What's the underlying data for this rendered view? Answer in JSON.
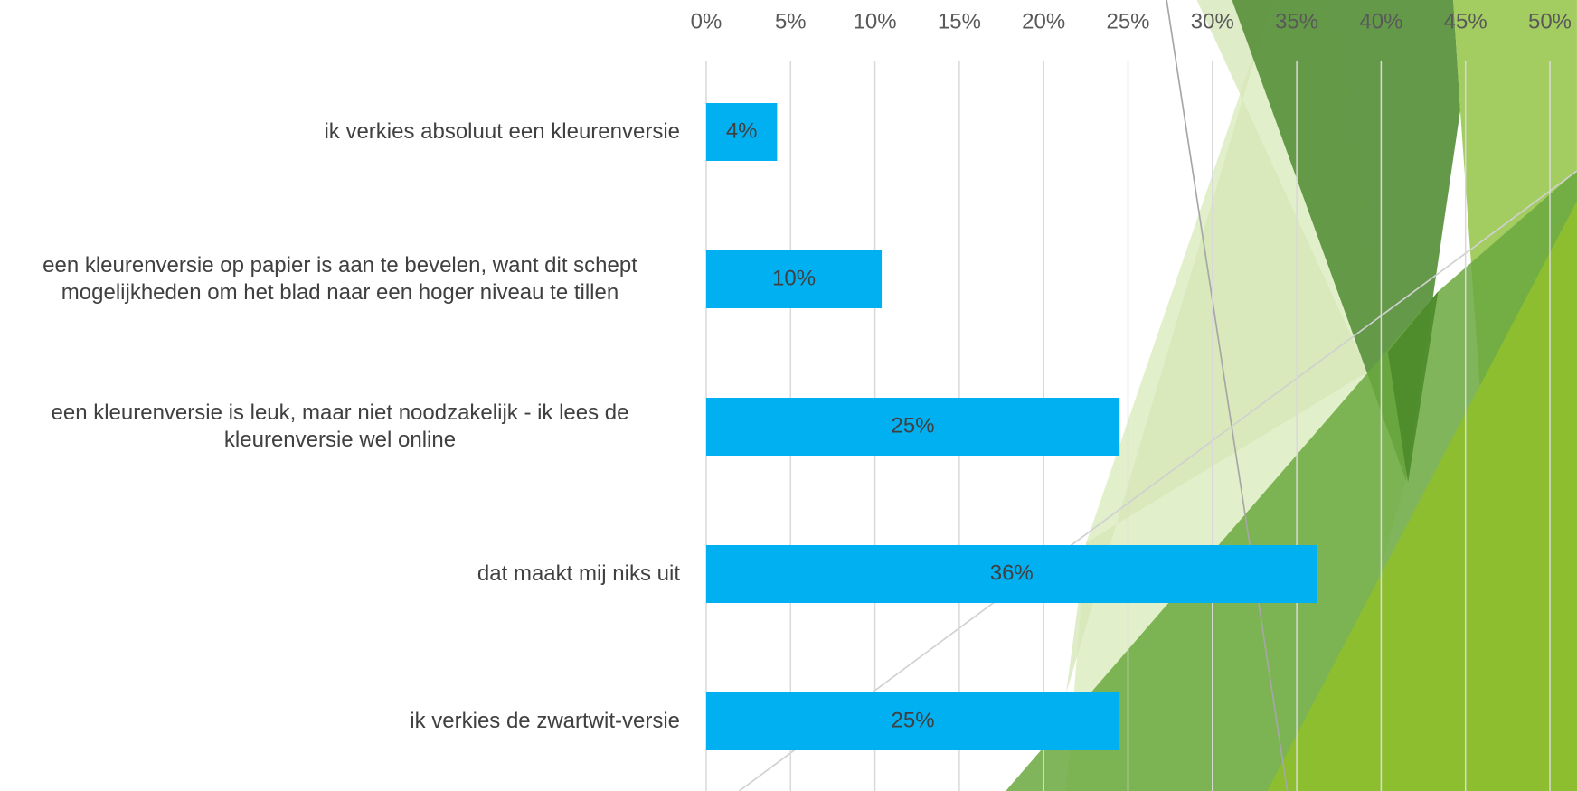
{
  "chart_data": {
    "type": "bar",
    "orientation": "horizontal",
    "categories": [
      "ik verkies absoluut een kleurenversie",
      "een kleurenversie op papier is aan te bevelen, want dit schept mogelijkheden om het blad naar een hoger niveau te tillen",
      "een kleurenversie is leuk, maar niet noodzakelijk - ik lees de kleurenversie wel online",
      "dat maakt mij niks uit",
      "ik verkies de zwartwit-versie"
    ],
    "values": [
      4.2,
      10.4,
      24.5,
      36.2,
      24.5
    ],
    "value_labels": [
      "4%",
      "10%",
      "25%",
      "36%",
      "25%"
    ],
    "color": "#00b0f0",
    "xlim": [
      0,
      50
    ],
    "xticks": [
      {
        "value": 0,
        "label": "0%"
      },
      {
        "value": 5,
        "label": "5%"
      },
      {
        "value": 10,
        "label": "10%"
      },
      {
        "value": 15,
        "label": "15%"
      },
      {
        "value": 20,
        "label": "20%"
      },
      {
        "value": 25,
        "label": "25%"
      },
      {
        "value": 30,
        "label": "30%"
      },
      {
        "value": 35,
        "label": "35%"
      },
      {
        "value": 40,
        "label": "40%"
      },
      {
        "value": 45,
        "label": "45%"
      },
      {
        "value": 50,
        "label": "50%"
      }
    ],
    "grid": true
  }
}
